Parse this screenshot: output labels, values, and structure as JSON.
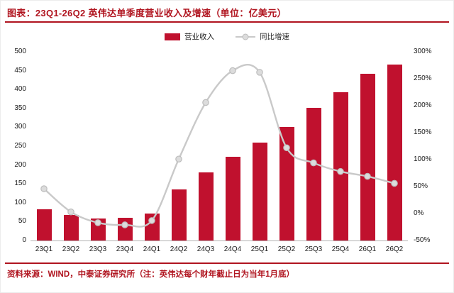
{
  "header": {
    "title": "图表：23Q1-26Q2 英伟达单季度营业收入及增速（单位：亿美元）"
  },
  "legend": {
    "items": [
      {
        "label": "营业收入",
        "swatch": "bar-swatch"
      },
      {
        "label": "同比增速",
        "swatch": "line-swatch"
      }
    ]
  },
  "footer": {
    "source_note": "资料来源：WIND，中泰证券研究所（注：英伟达每个财年截止日为当年1月底）"
  },
  "colors": {
    "accent": "#b0141f",
    "bar": "#c0112e",
    "line": "#c9c9c9",
    "marker_fill": "#dcdcdc",
    "marker_stroke": "#bdbdbd",
    "axis_line": "#b3b3b3",
    "tick_text": "#1a1a1a"
  },
  "chart_data": {
    "type": "bar",
    "title": "23Q1-26Q2 英伟达单季度营业收入及增速（单位：亿美元）",
    "categories": [
      "23Q1",
      "23Q2",
      "23Q3",
      "23Q4",
      "24Q1",
      "24Q2",
      "24Q3",
      "24Q4",
      "25Q1",
      "25Q2",
      "25Q3",
      "25Q4",
      "26Q1",
      "26Q2"
    ],
    "series": [
      {
        "name": "营业收入",
        "type": "bar",
        "axis": "left",
        "unit": "亿美元",
        "values": [
          83,
          67,
          59,
          61,
          72,
          135,
          181,
          221,
          260,
          300,
          351,
          393,
          441,
          467
        ]
      },
      {
        "name": "同比增速",
        "type": "line",
        "axis": "right",
        "unit": "%",
        "values": [
          46,
          3,
          -17,
          -21,
          -13,
          101,
          206,
          265,
          262,
          122,
          94,
          78,
          69,
          56
        ]
      }
    ],
    "left_axis": {
      "min": 0,
      "max": 500,
      "tick_labels": [
        "500",
        "450",
        "400",
        "350",
        "300",
        "250",
        "200",
        "150",
        "100",
        "50",
        "0"
      ]
    },
    "right_axis": {
      "min": -50,
      "max": 300,
      "tick_labels": [
        "300%",
        "250%",
        "200%",
        "150%",
        "100%",
        "50%",
        "0%",
        "-50%"
      ]
    },
    "grid": false,
    "legend_position": "top-center"
  }
}
